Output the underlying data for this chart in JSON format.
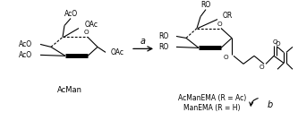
{
  "background_color": "#ffffff",
  "fig_width": 3.33,
  "fig_height": 1.35,
  "dpi": 100,
  "label_acman": "AcMan",
  "label_acmanema": "AcManEMA (R = Ac)",
  "label_manema": "ManEMA (R = H)",
  "arrow_a_label": "a",
  "arrow_b_label": "b",
  "text_color": "#000000",
  "line_color": "#000000",
  "font_size_label": 6.0,
  "font_size_arrow": 7.0,
  "font_size_sub": 5.5
}
